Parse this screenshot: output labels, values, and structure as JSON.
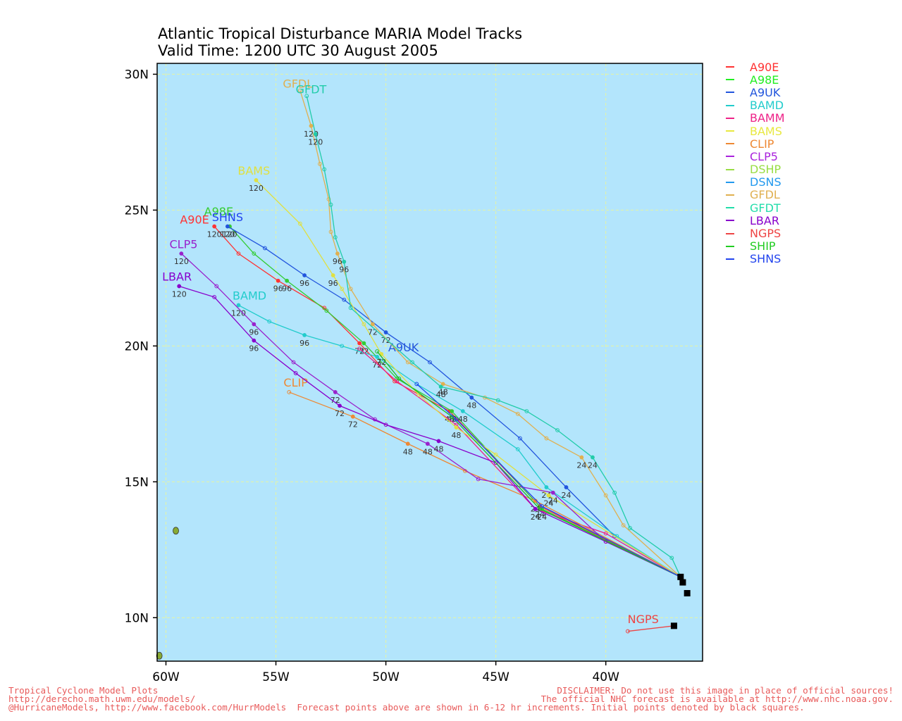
{
  "title": {
    "line1": "Atlantic Tropical Disturbance MARIA Model Tracks",
    "line2": "Valid Time: 1200 UTC 30 August 2005"
  },
  "axes": {
    "lon_min": -60.4,
    "lon_max": -35.6,
    "lat_min": 8.4,
    "lat_max": 30.4,
    "x_ticks": [
      {
        "v": -60,
        "label": "60W"
      },
      {
        "v": -55,
        "label": "55W"
      },
      {
        "v": -50,
        "label": "50W"
      },
      {
        "v": -45,
        "label": "45W"
      },
      {
        "v": -40,
        "label": "40W"
      }
    ],
    "y_ticks": [
      {
        "v": 30,
        "label": "30N"
      },
      {
        "v": 25,
        "label": "25N"
      },
      {
        "v": 20,
        "label": "20N"
      },
      {
        "v": 15,
        "label": "15N"
      },
      {
        "v": 10,
        "label": "10N"
      }
    ],
    "ocean_color": "#b3e5fc",
    "grid_color": "#e8f5a0"
  },
  "initial_points": [
    {
      "lon": -36.6,
      "lat": 11.5
    },
    {
      "lon": -36.5,
      "lat": 11.3
    },
    {
      "lon": -36.3,
      "lat": 10.9
    },
    {
      "lon": -36.9,
      "lat": 9.7
    }
  ],
  "islands": [
    {
      "lon": -59.55,
      "lat": 13.2,
      "name": "barbados"
    },
    {
      "lon": -60.3,
      "lat": 8.6,
      "name": "coast"
    }
  ],
  "tracks": [
    {
      "name": "A90E",
      "color": "#ff3333",
      "points": [
        [
          -36.6,
          11.5
        ],
        [
          -43,
          14.1
        ],
        [
          -47.1,
          17.6
        ],
        [
          -49.6,
          18.7
        ],
        [
          -51.2,
          20.1
        ],
        [
          -52.8,
          21.4
        ],
        [
          -54.9,
          22.4
        ],
        [
          -56.7,
          23.4
        ],
        [
          -57.8,
          24.4
        ]
      ],
      "marks": [
        {
          "lon": -43,
          "lat": 14.1,
          "t": "24"
        },
        {
          "lon": -47.1,
          "lat": 17.6,
          "t": "48"
        },
        {
          "lon": -51.2,
          "lat": 20.1,
          "t": "72"
        },
        {
          "lon": -54.9,
          "lat": 22.4,
          "t": "96"
        },
        {
          "lon": -57.8,
          "lat": 24.4,
          "t": "120"
        }
      ],
      "label": {
        "lon": -58.7,
        "lat": 24.5,
        "t": "A90E"
      }
    },
    {
      "name": "A98E",
      "color": "#33cc33",
      "points": [
        [
          -36.6,
          11.5
        ],
        [
          -42.9,
          14.0
        ],
        [
          -47,
          17.6
        ],
        [
          -49.5,
          18.8
        ],
        [
          -51,
          20.1
        ],
        [
          -52.7,
          21.3
        ],
        [
          -54.5,
          22.4
        ],
        [
          -56,
          23.4
        ],
        [
          -57.1,
          24.4
        ]
      ],
      "marks": [
        {
          "lon": -42.9,
          "lat": 14.0,
          "t": "24"
        },
        {
          "lon": -47,
          "lat": 17.6,
          "t": "48"
        },
        {
          "lon": -51,
          "lat": 20.1,
          "t": "72"
        },
        {
          "lon": -54.5,
          "lat": 22.4,
          "t": "96"
        },
        {
          "lon": -57.1,
          "lat": 24.4,
          "t": "120"
        }
      ],
      "label": {
        "lon": -57.6,
        "lat": 24.8,
        "t": "A98E"
      }
    },
    {
      "name": "A9UK",
      "color": "#2255dd",
      "points": [
        [
          -36.6,
          11.5
        ],
        [
          -39.6,
          13.0
        ],
        [
          -41.8,
          14.8
        ],
        [
          -43.9,
          16.6
        ],
        [
          -46.1,
          18.1
        ],
        [
          -48,
          19.4
        ],
        [
          -50,
          20.5
        ],
        [
          -51.9,
          21.7
        ],
        [
          -53.7,
          22.6
        ],
        [
          -55.5,
          23.6
        ],
        [
          -57.2,
          24.4
        ]
      ],
      "marks": [
        {
          "lon": -41.8,
          "lat": 14.8,
          "t": "24"
        },
        {
          "lon": -46.1,
          "lat": 18.1,
          "t": "48"
        },
        {
          "lon": -50,
          "lat": 20.5,
          "t": "72"
        },
        {
          "lon": -53.7,
          "lat": 22.6,
          "t": "96"
        },
        {
          "lon": -57.2,
          "lat": 24.4,
          "t": "120"
        }
      ],
      "label": {
        "lon": -49.2,
        "lat": 19.8,
        "t": "A9UK"
      }
    },
    {
      "name": "BAMD",
      "color": "#22cccc",
      "points": [
        [
          -36.6,
          11.5
        ],
        [
          -39.5,
          13
        ],
        [
          -42.7,
          14.8
        ],
        [
          -44,
          16.2
        ],
        [
          -46.5,
          17.6
        ],
        [
          -48.6,
          18.6
        ],
        [
          -50.4,
          19.6
        ],
        [
          -52,
          20.0
        ],
        [
          -53.7,
          20.4
        ],
        [
          -55.3,
          20.9
        ],
        [
          -56.7,
          21.5
        ]
      ],
      "marks": [
        {
          "lon": -42.7,
          "lat": 14.8,
          "t": "24"
        },
        {
          "lon": -46.5,
          "lat": 17.6,
          "t": "48"
        },
        {
          "lon": -50.4,
          "lat": 19.6,
          "t": "72"
        },
        {
          "lon": -53.7,
          "lat": 20.4,
          "t": "96"
        },
        {
          "lon": -56.7,
          "lat": 21.5,
          "t": "120"
        }
      ],
      "label": {
        "lon": -56.2,
        "lat": 21.7,
        "t": "BAMD"
      }
    },
    {
      "name": "BAMM",
      "color": "#ee2288",
      "points": [
        [
          -36.6,
          11.5
        ],
        [
          -40,
          13.1
        ],
        [
          -43.2,
          14.0
        ],
        [
          -46.8,
          17.1
        ],
        [
          -49.5,
          18.7
        ],
        [
          -51.2,
          19.9
        ]
      ],
      "marks": [],
      "label": null
    },
    {
      "name": "BAMS",
      "color": "#e0e040",
      "points": [
        [
          -36.6,
          11.5
        ],
        [
          -42.6,
          14.5
        ],
        [
          -45,
          16
        ],
        [
          -46.8,
          17.0
        ],
        [
          -48.5,
          18.2
        ],
        [
          -50.2,
          19.7
        ],
        [
          -51,
          20.8
        ],
        [
          -52,
          22.1
        ],
        [
          -52.4,
          22.6
        ],
        [
          -53.9,
          24.5
        ],
        [
          -55.9,
          26.1
        ]
      ],
      "marks": [
        {
          "lon": -42.6,
          "lat": 14.5,
          "t": "24"
        },
        {
          "lon": -46.8,
          "lat": 17.0,
          "t": "48"
        },
        {
          "lon": -50.2,
          "lat": 19.7,
          "t": "72"
        },
        {
          "lon": -52.4,
          "lat": 22.6,
          "t": "96"
        },
        {
          "lon": -55.9,
          "lat": 26.1,
          "t": "120"
        }
      ],
      "label": {
        "lon": -56,
        "lat": 26.3,
        "t": "BAMS"
      }
    },
    {
      "name": "CLIP",
      "color": "#ee8833",
      "points": [
        [
          -36.6,
          11.5
        ],
        [
          -43.2,
          14.3
        ],
        [
          -46.4,
          15.4
        ],
        [
          -49,
          16.4
        ],
        [
          -51.5,
          17.4
        ],
        [
          -54.4,
          18.3
        ]
      ],
      "marks": [
        {
          "lon": -43.2,
          "lat": 14.3,
          "t": "24"
        },
        {
          "lon": -49,
          "lat": 16.4,
          "t": "48"
        },
        {
          "lon": -51.5,
          "lat": 17.4,
          "t": "72"
        }
      ],
      "label": {
        "lon": -54.1,
        "lat": 18.5,
        "t": "CLIP"
      }
    },
    {
      "name": "CLP5",
      "color": "#9922cc",
      "points": [
        [
          -36.6,
          11.5
        ],
        [
          -40,
          12.8
        ],
        [
          -42.4,
          14.6
        ],
        [
          -45.8,
          15.1
        ],
        [
          -48.1,
          16.4
        ],
        [
          -50.5,
          17.3
        ],
        [
          -52.3,
          18.3
        ],
        [
          -54.2,
          19.4
        ],
        [
          -56.0,
          20.8
        ],
        [
          -57.7,
          22.2
        ],
        [
          -59.3,
          23.4
        ]
      ],
      "marks": [
        {
          "lon": -42.4,
          "lat": 14.6,
          "t": "24"
        },
        {
          "lon": -48.1,
          "lat": 16.4,
          "t": "48"
        },
        {
          "lon": -52.3,
          "lat": 18.3,
          "t": "72"
        },
        {
          "lon": -56.0,
          "lat": 20.8,
          "t": "96"
        },
        {
          "lon": -59.3,
          "lat": 23.4,
          "t": "120"
        }
      ],
      "label": {
        "lon": -59.2,
        "lat": 23.6,
        "t": "CLP5"
      }
    },
    {
      "name": "DSHP",
      "color": "#99dd44",
      "points": [],
      "marks": [],
      "label": null
    },
    {
      "name": "DSNS",
      "color": "#2299ee",
      "points": [],
      "marks": [],
      "label": null
    },
    {
      "name": "GFDL",
      "color": "#e0b050",
      "points": [
        [
          -36.6,
          11.5
        ],
        [
          -39.2,
          13.4
        ],
        [
          -40,
          14.5
        ],
        [
          -41.1,
          15.9
        ],
        [
          -42.7,
          16.6
        ],
        [
          -44,
          17.5
        ],
        [
          -45.5,
          18.1
        ],
        [
          -47.4,
          18.6
        ],
        [
          -49,
          19.4
        ],
        [
          -50.6,
          20.8
        ],
        [
          -51.6,
          22.1
        ],
        [
          -52.2,
          23.4
        ],
        [
          -52.5,
          24.2
        ],
        [
          -52.6,
          25.4
        ],
        [
          -53.0,
          26.7
        ],
        [
          -53.4,
          28.1
        ],
        [
          -53.9,
          29.4
        ]
      ],
      "marks": [
        {
          "lon": -41.1,
          "lat": 15.9,
          "t": "24"
        },
        {
          "lon": -47.4,
          "lat": 18.6,
          "t": "48"
        },
        {
          "lon": -50.6,
          "lat": 20.8,
          "t": "72"
        },
        {
          "lon": -52.2,
          "lat": 23.4,
          "t": "96"
        },
        {
          "lon": -53.4,
          "lat": 28.1,
          "t": "120"
        }
      ],
      "label": {
        "lon": -54,
        "lat": 29.5,
        "t": "GFDL"
      }
    },
    {
      "name": "GFDT",
      "color": "#22ccaa",
      "points": [
        [
          -36.6,
          11.5
        ],
        [
          -37.0,
          12.2
        ],
        [
          -38.9,
          13.3
        ],
        [
          -39.6,
          14.6
        ],
        [
          -40.6,
          15.9
        ],
        [
          -42.2,
          16.9
        ],
        [
          -43.6,
          17.6
        ],
        [
          -44.9,
          18.0
        ],
        [
          -47.5,
          18.5
        ],
        [
          -48.8,
          19.4
        ],
        [
          -51.6,
          21.4
        ],
        [
          -51.9,
          23.1
        ],
        [
          -52.3,
          24.0
        ],
        [
          -52.5,
          25.2
        ],
        [
          -52.8,
          26.5
        ],
        [
          -53.2,
          27.8
        ],
        [
          -53.6,
          29.2
        ]
      ],
      "marks": [
        {
          "lon": -40.6,
          "lat": 15.9,
          "t": "24"
        },
        {
          "lon": -47.5,
          "lat": 18.5,
          "t": "48"
        },
        {
          "lon": -51.9,
          "lat": 23.1,
          "t": "96"
        },
        {
          "lon": -53.2,
          "lat": 27.8,
          "t": "120"
        }
      ],
      "label": {
        "lon": -53.4,
        "lat": 29.3,
        "t": "GFDT"
      }
    },
    {
      "name": "LBAR",
      "color": "#8800cc",
      "points": [
        [
          -36.6,
          11.5
        ],
        [
          -40,
          12.8
        ],
        [
          -43.2,
          14.0
        ],
        [
          -45,
          15.7
        ],
        [
          -47.6,
          16.5
        ],
        [
          -50,
          17.1
        ],
        [
          -52.1,
          17.8
        ],
        [
          -54.1,
          19.0
        ],
        [
          -56,
          20.2
        ],
        [
          -57.8,
          21.8
        ],
        [
          -59.4,
          22.2
        ]
      ],
      "marks": [
        {
          "lon": -43.2,
          "lat": 14.0,
          "t": "24"
        },
        {
          "lon": -47.6,
          "lat": 16.5,
          "t": "48"
        },
        {
          "lon": -52.1,
          "lat": 17.8,
          "t": "72"
        },
        {
          "lon": -56,
          "lat": 20.2,
          "t": "96"
        },
        {
          "lon": -59.4,
          "lat": 22.2,
          "t": "120"
        }
      ],
      "label": {
        "lon": -59.5,
        "lat": 22.4,
        "t": "LBAR"
      }
    },
    {
      "name": "NGPS",
      "color": "#ee4444",
      "points": [
        [
          -36.9,
          9.7
        ],
        [
          -39,
          9.5
        ]
      ],
      "marks": [],
      "label": {
        "lon": -38.3,
        "lat": 9.8,
        "t": "NGPS"
      }
    },
    {
      "name": "SHIP",
      "color": "#22bb22",
      "points": [
        [
          -36.6,
          11.5
        ],
        [
          -43,
          14.0
        ],
        [
          -47,
          17.4
        ],
        [
          -49.4,
          18.8
        ],
        [
          -50.4,
          19.8
        ]
      ],
      "marks": [],
      "label": null
    },
    {
      "name": "SHNS",
      "color": "#2244ee",
      "points": [
        [
          -36.6,
          11.5
        ],
        [
          -42.9,
          14.1
        ],
        [
          -46.8,
          17.3
        ],
        [
          -48.6,
          18.6
        ]
      ],
      "marks": [],
      "label": {
        "lon": -57.2,
        "lat": 24.6,
        "t": "SHNS"
      }
    }
  ],
  "legend": [
    {
      "name": "A90E",
      "color": "#ff3333"
    },
    {
      "name": "A98E",
      "color": "#22ee22"
    },
    {
      "name": "A9UK",
      "color": "#2255dd"
    },
    {
      "name": "BAMD",
      "color": "#22cccc"
    },
    {
      "name": "BAMM",
      "color": "#ee2288"
    },
    {
      "name": "BAMS",
      "color": "#e8e840"
    },
    {
      "name": "CLIP",
      "color": "#ee8833"
    },
    {
      "name": "CLP5",
      "color": "#aa22dd"
    },
    {
      "name": "DSHP",
      "color": "#99dd44"
    },
    {
      "name": "DSNS",
      "color": "#2299ee"
    },
    {
      "name": "GFDL",
      "color": "#e0b050"
    },
    {
      "name": "GFDT",
      "color": "#22ddaa"
    },
    {
      "name": "LBAR",
      "color": "#8800cc"
    },
    {
      "name": "NGPS",
      "color": "#ee4444"
    },
    {
      "name": "SHIP",
      "color": "#22cc22"
    },
    {
      "name": "SHNS",
      "color": "#2244ee"
    }
  ],
  "footer": {
    "left1": "Tropical Cyclone Model Plots",
    "left2": "http://derecho.math.uwm.edu/models/",
    "left3": "@HurricaneModels, http://www.facebook.com/HurrModels  Forecast points above are shown in 6-12 hr increments. Initial points denoted by black squares.",
    "right1": "DISCLAIMER: Do not use this image in place of official sources!",
    "right2": "The official NHC forecast is available at http://www.nhc.noaa.gov."
  }
}
